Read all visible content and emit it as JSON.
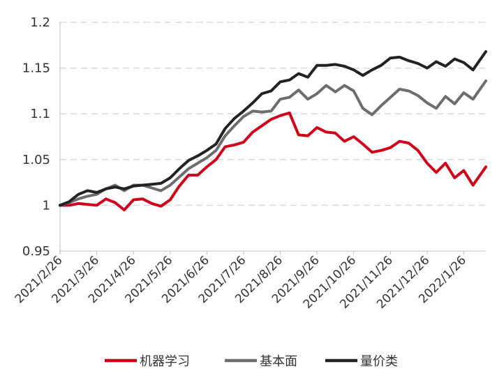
{
  "chart_data": {
    "type": "line",
    "title": "",
    "xlabel": "",
    "ylabel": "",
    "ylim": [
      0.95,
      1.2
    ],
    "y_ticks": [
      "0.95",
      "1",
      "1.05",
      "1.1",
      "1.15",
      "1.2"
    ],
    "x_tick_labels": [
      "2021/2/26",
      "2021/3/26",
      "2021/4/26",
      "2021/5/26",
      "2021/6/26",
      "2021/7/26",
      "2021/8/26",
      "2021/9/26",
      "2021/10/26",
      "2021/11/26",
      "2021/12/26",
      "2022/1/26"
    ],
    "x_range_months": [
      0,
      11.6
    ],
    "grid": "horizontal dashed",
    "legend_position": "bottom",
    "series": [
      {
        "name": "机器学习",
        "color": "#d0021b",
        "x": [
          0,
          0.25,
          0.5,
          0.75,
          1,
          1.25,
          1.5,
          1.75,
          2,
          2.25,
          2.5,
          2.75,
          3,
          3.25,
          3.5,
          3.75,
          4,
          4.25,
          4.5,
          4.75,
          5,
          5.25,
          5.5,
          5.75,
          6,
          6.25,
          6.5,
          6.75,
          7,
          7.25,
          7.5,
          7.75,
          8,
          8.25,
          8.5,
          8.75,
          9,
          9.25,
          9.5,
          9.75,
          10,
          10.25,
          10.5,
          10.75,
          11,
          11.25,
          11.6
        ],
        "values": [
          1.0,
          1.0,
          1.002,
          1.001,
          1.0,
          1.007,
          1.003,
          0.995,
          1.006,
          1.007,
          1.002,
          0.999,
          1.006,
          1.021,
          1.033,
          1.033,
          1.042,
          1.05,
          1.064,
          1.066,
          1.069,
          1.08,
          1.087,
          1.094,
          1.098,
          1.101,
          1.077,
          1.076,
          1.085,
          1.08,
          1.079,
          1.07,
          1.075,
          1.067,
          1.058,
          1.06,
          1.063,
          1.07,
          1.068,
          1.06,
          1.046,
          1.036,
          1.046,
          1.03,
          1.038,
          1.022,
          1.042
        ]
      },
      {
        "name": "基本面",
        "color": "#6d6d6d",
        "x": [
          0,
          0.25,
          0.5,
          0.75,
          1,
          1.25,
          1.5,
          1.75,
          2,
          2.25,
          2.5,
          2.75,
          3,
          3.25,
          3.5,
          3.75,
          4,
          4.25,
          4.5,
          4.75,
          5,
          5.25,
          5.5,
          5.75,
          6,
          6.25,
          6.5,
          6.75,
          7,
          7.25,
          7.5,
          7.75,
          8,
          8.25,
          8.5,
          8.75,
          9,
          9.25,
          9.5,
          9.75,
          10,
          10.25,
          10.5,
          10.75,
          11,
          11.25,
          11.6
        ],
        "values": [
          1.0,
          1.003,
          1.007,
          1.01,
          1.012,
          1.018,
          1.022,
          1.016,
          1.022,
          1.022,
          1.019,
          1.016,
          1.022,
          1.031,
          1.04,
          1.046,
          1.052,
          1.06,
          1.076,
          1.087,
          1.097,
          1.103,
          1.102,
          1.103,
          1.116,
          1.118,
          1.126,
          1.116,
          1.122,
          1.131,
          1.124,
          1.131,
          1.125,
          1.106,
          1.099,
          1.109,
          1.118,
          1.127,
          1.125,
          1.12,
          1.112,
          1.106,
          1.119,
          1.111,
          1.123,
          1.116,
          1.136
        ]
      },
      {
        "name": "量价类",
        "color": "#222222",
        "x": [
          0,
          0.25,
          0.5,
          0.75,
          1,
          1.25,
          1.5,
          1.75,
          2,
          2.25,
          2.5,
          2.75,
          3,
          3.25,
          3.5,
          3.75,
          4,
          4.25,
          4.5,
          4.75,
          5,
          5.25,
          5.5,
          5.75,
          6,
          6.25,
          6.5,
          6.75,
          7,
          7.25,
          7.5,
          7.75,
          8,
          8.25,
          8.5,
          8.75,
          9,
          9.25,
          9.5,
          9.75,
          10,
          10.25,
          10.5,
          10.75,
          11,
          11.25,
          11.6
        ],
        "values": [
          1.0,
          1.004,
          1.012,
          1.016,
          1.014,
          1.018,
          1.02,
          1.018,
          1.021,
          1.022,
          1.023,
          1.024,
          1.03,
          1.04,
          1.049,
          1.054,
          1.06,
          1.067,
          1.084,
          1.095,
          1.103,
          1.112,
          1.122,
          1.125,
          1.135,
          1.137,
          1.144,
          1.14,
          1.153,
          1.153,
          1.154,
          1.152,
          1.148,
          1.142,
          1.148,
          1.153,
          1.161,
          1.162,
          1.158,
          1.155,
          1.15,
          1.157,
          1.152,
          1.16,
          1.156,
          1.148,
          1.168
        ]
      }
    ]
  }
}
